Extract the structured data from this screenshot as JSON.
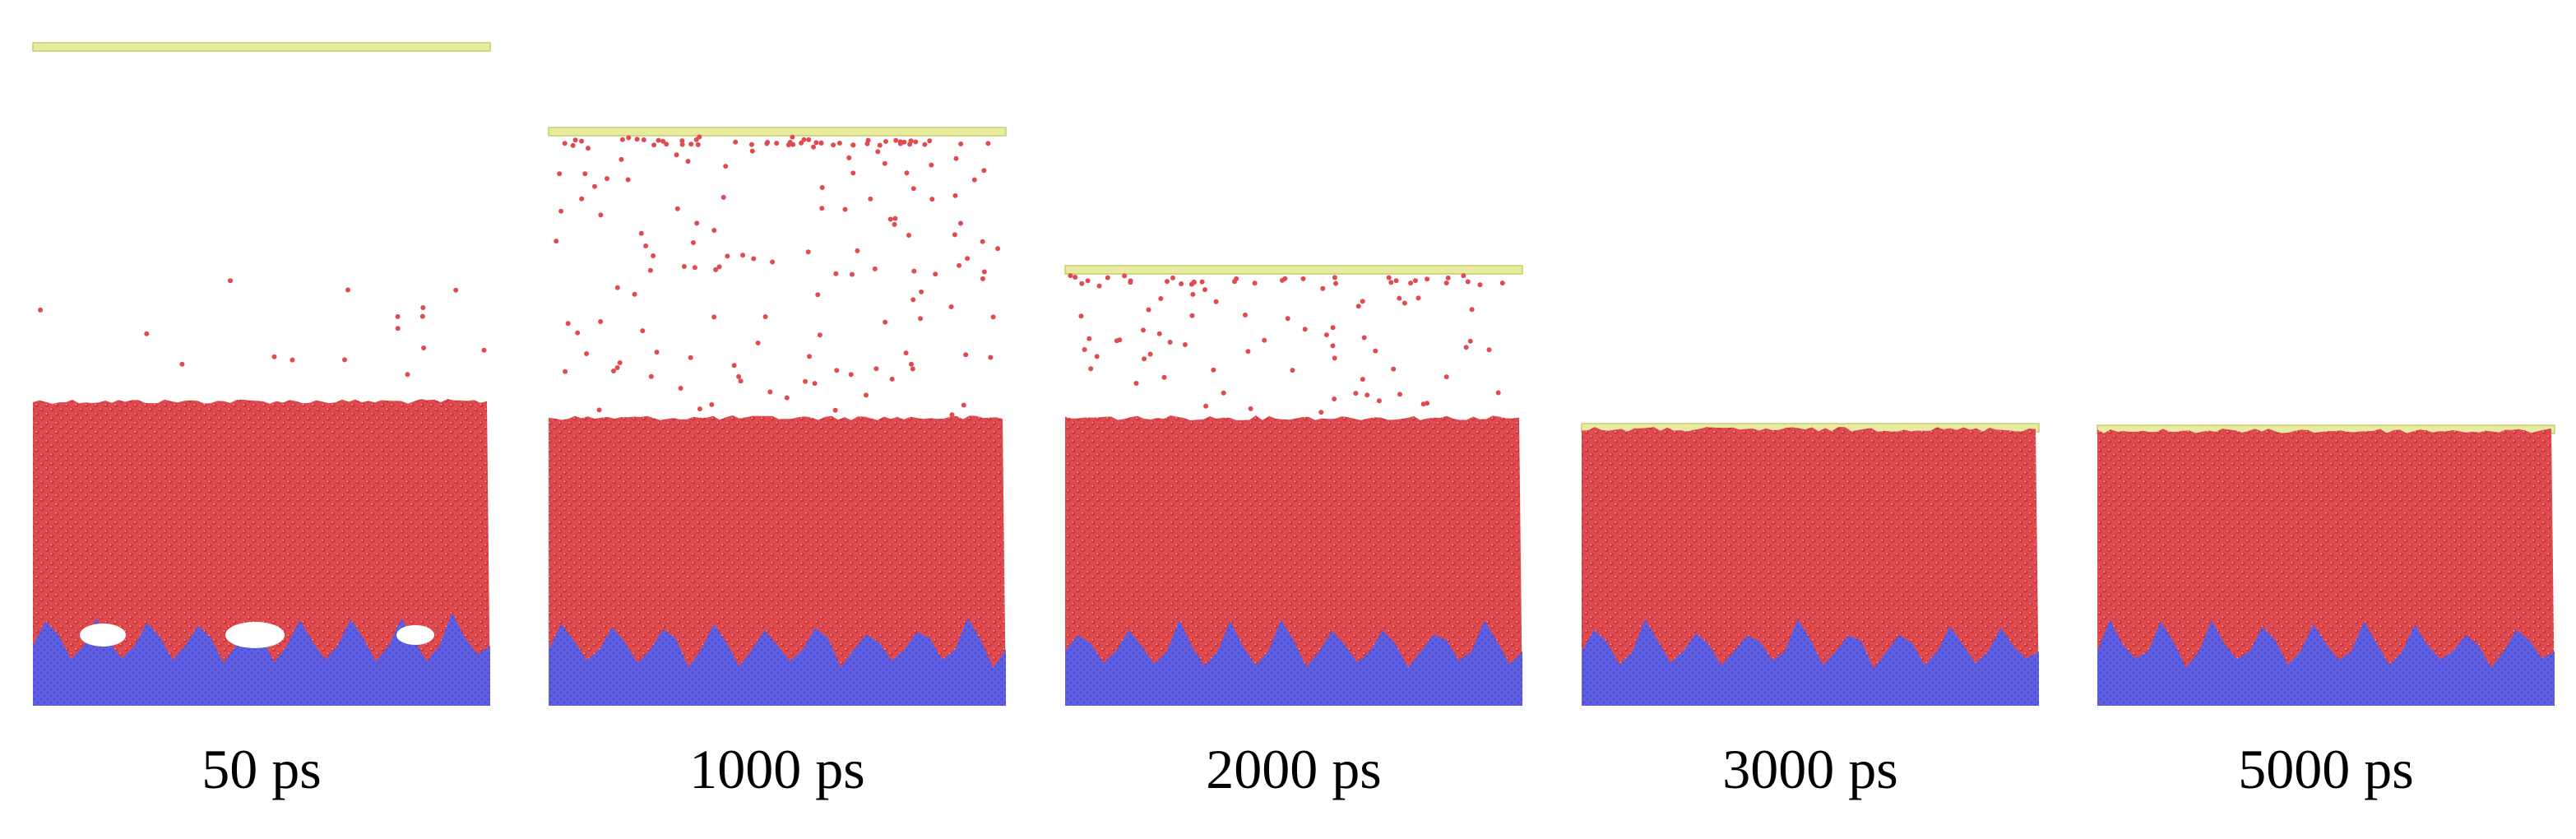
{
  "colors": {
    "liquid": "#e04b50",
    "liquid_highlight": "#ff9a9a",
    "liquid_shadow": "#b8262c",
    "substrate": "#5f5fe3",
    "substrate_dark": "#3d3dbd",
    "piston": "#e8eba2",
    "piston_edge": "#c9cd6a",
    "void": "#ffffff"
  },
  "panels": [
    {
      "label": "50 ps"
    },
    {
      "label": "1000 ps"
    },
    {
      "label": "2000 ps"
    },
    {
      "label": "3000 ps"
    },
    {
      "label": "5000 ps"
    }
  ]
}
